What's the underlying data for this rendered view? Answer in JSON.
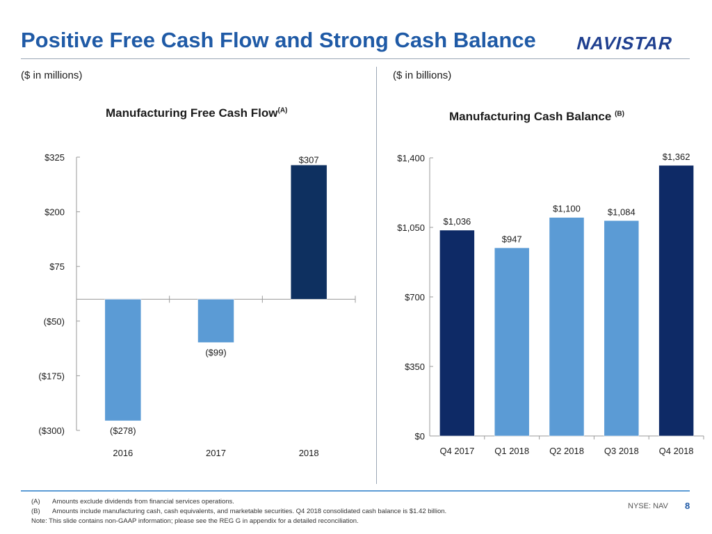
{
  "header": {
    "title": "Positive Free Cash Flow and Strong Cash Balance",
    "logo_text": "NAVISTAR",
    "logo_color": "#1f3f8f"
  },
  "left_panel": {
    "unit_label": "($ in millions)"
  },
  "right_panel": {
    "unit_label": "($ in billions)"
  },
  "chart_data": [
    {
      "type": "bar",
      "title": "Manufacturing Free Cash Flow",
      "title_superscript": "(A)",
      "categories": [
        "2016",
        "2017",
        "2018"
      ],
      "values": [
        -278,
        -99,
        307
      ],
      "value_labels": [
        "($278)",
        "($99)",
        "$307"
      ],
      "bar_colors": [
        "#5b9bd5",
        "#5b9bd5",
        "#0e3060"
      ],
      "ylim": [
        -300,
        325
      ],
      "yticks": [
        325,
        200,
        75,
        -50,
        -175,
        -300
      ],
      "ytick_labels": [
        "$325",
        "$200",
        "$75",
        "($50)",
        "($175)",
        "($300)"
      ],
      "grid": false
    },
    {
      "type": "bar",
      "title": "Manufacturing Cash Balance",
      "title_superscript": "(B)",
      "categories": [
        "Q4 2017",
        "Q1 2018",
        "Q2 2018",
        "Q3 2018",
        "Q4 2018"
      ],
      "values": [
        1036,
        947,
        1100,
        1084,
        1362
      ],
      "value_labels": [
        "$1,036",
        "$947",
        "$1,100",
        "$1,084",
        "$1,362"
      ],
      "bar_colors": [
        "#0e2a66",
        "#5b9bd5",
        "#5b9bd5",
        "#5b9bd5",
        "#0e2a66"
      ],
      "ylim": [
        0,
        1400
      ],
      "yticks": [
        1400,
        1050,
        700,
        350,
        0
      ],
      "ytick_labels": [
        "$1,400",
        "$1,050",
        "$700",
        "$350",
        "$0"
      ],
      "grid": false
    }
  ],
  "footer": {
    "note_a_tag": "(A)",
    "note_a": "Amounts exclude dividends from financial services operations.",
    "note_b_tag": "(B)",
    "note_b": "Amounts include manufacturing cash, cash equivalents, and marketable securities. Q4 2018 consolidated cash balance is $1.42 billion.",
    "note": "Note: This slide contains non-GAAP information; please see the REG G in appendix for a detailed reconciliation.",
    "ticker": "NYSE: NAV",
    "page": "8"
  }
}
